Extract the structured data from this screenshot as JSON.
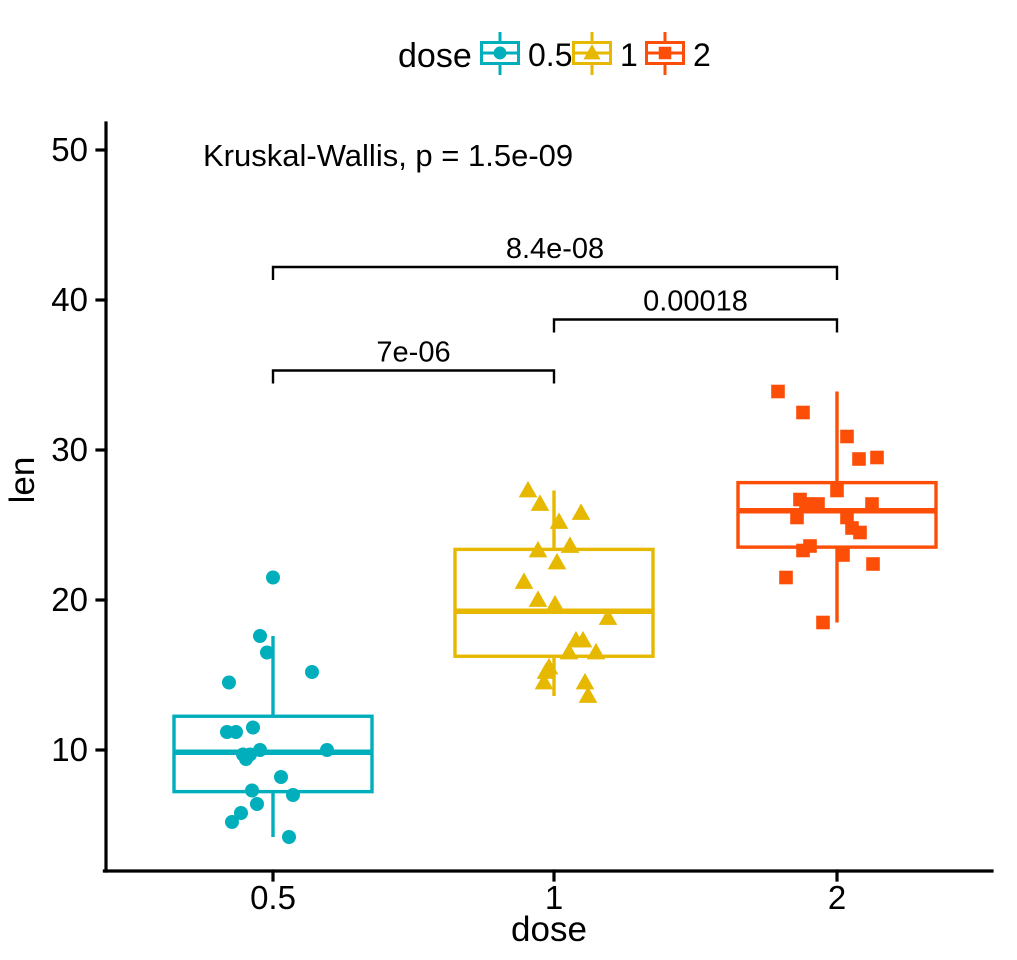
{
  "legend": {
    "title": "dose",
    "entries": [
      {
        "label": "0.5",
        "color": "#00AFBB",
        "marker": "circle"
      },
      {
        "label": "1",
        "color": "#E7B800",
        "marker": "triangle"
      },
      {
        "label": "2",
        "color": "#FC4E07",
        "marker": "square"
      }
    ]
  },
  "annotations": {
    "global_test": "Kruskal-Wallis, p = 1.5e-09",
    "comparisons": [
      {
        "group1": "0.5",
        "group2": "1",
        "label": "7e-06",
        "y": 35.3
      },
      {
        "group1": "1",
        "group2": "2",
        "label": "0.00018",
        "y": 38.7
      },
      {
        "group1": "0.5",
        "group2": "2",
        "label": "8.4e-08",
        "y": 42.2
      }
    ]
  },
  "chart_data": {
    "type": "boxplot",
    "title": "",
    "xlabel": "dose",
    "ylabel": "len",
    "categories": [
      "0.5",
      "1",
      "2"
    ],
    "ylim": [
      2,
      52
    ],
    "yticks": [
      10,
      20,
      30,
      40,
      50
    ],
    "legend_position": "top",
    "grid": false,
    "point_format": "each point is [x-jitter-offset-px, len-value]",
    "series": [
      {
        "name": "0.5",
        "color": "#00AFBB",
        "marker": "circle",
        "box": {
          "lower_whisker": 4.2,
          "q1": 7.225,
          "median": 9.85,
          "q3": 12.25,
          "upper_whisker": 17.6
        },
        "points": [
          [
            16,
            4.2
          ],
          [
            -41,
            5.2
          ],
          [
            -32,
            5.8
          ],
          [
            -16,
            6.4
          ],
          [
            20,
            7.0
          ],
          [
            -21,
            7.3
          ],
          [
            8,
            8.2
          ],
          [
            -27,
            9.4
          ],
          [
            -30,
            9.7
          ],
          [
            -23,
            9.7
          ],
          [
            -13,
            10.0
          ],
          [
            54,
            10.0
          ],
          [
            -46,
            11.2
          ],
          [
            -37,
            11.2
          ],
          [
            -20,
            11.5
          ],
          [
            -44,
            14.5
          ],
          [
            39,
            15.2
          ],
          [
            -6,
            16.5
          ],
          [
            -13,
            17.6
          ],
          [
            0,
            21.5
          ]
        ]
      },
      {
        "name": "1",
        "color": "#E7B800",
        "marker": "triangle",
        "box": {
          "lower_whisker": 13.6,
          "q1": 16.25,
          "median": 19.25,
          "q3": 23.375,
          "upper_whisker": 27.3
        },
        "points": [
          [
            34,
            13.6
          ],
          [
            -10,
            14.5
          ],
          [
            31,
            14.5
          ],
          [
            -8,
            15.2
          ],
          [
            -5,
            15.5
          ],
          [
            15,
            16.5
          ],
          [
            42,
            16.5
          ],
          [
            22,
            17.3
          ],
          [
            29,
            17.3
          ],
          [
            54,
            18.8
          ],
          [
            1,
            19.7
          ],
          [
            -16,
            20.0
          ],
          [
            -30,
            21.2
          ],
          [
            3,
            22.5
          ],
          [
            -16,
            23.3
          ],
          [
            16,
            23.6
          ],
          [
            5,
            25.2
          ],
          [
            27,
            25.8
          ],
          [
            -14,
            26.4
          ],
          [
            -26,
            27.3
          ]
        ]
      },
      {
        "name": "2",
        "color": "#FC4E07",
        "marker": "square",
        "box": {
          "lower_whisker": 18.5,
          "q1": 23.525,
          "median": 25.95,
          "q3": 27.825,
          "upper_whisker": 33.9
        },
        "points": [
          [
            -14,
            18.5
          ],
          [
            -51,
            21.5
          ],
          [
            36,
            22.4
          ],
          [
            6,
            23.0
          ],
          [
            -34,
            23.3
          ],
          [
            -27,
            23.6
          ],
          [
            23,
            24.5
          ],
          [
            15,
            24.8
          ],
          [
            -40,
            25.5
          ],
          [
            10,
            25.5
          ],
          [
            -31,
            26.4
          ],
          [
            -19,
            26.4
          ],
          [
            35,
            26.4
          ],
          [
            -37,
            26.7
          ],
          [
            0,
            27.3
          ],
          [
            22,
            29.4
          ],
          [
            40,
            29.5
          ],
          [
            10,
            30.9
          ],
          [
            -34,
            32.5
          ],
          [
            -59,
            33.9
          ]
        ]
      }
    ]
  }
}
